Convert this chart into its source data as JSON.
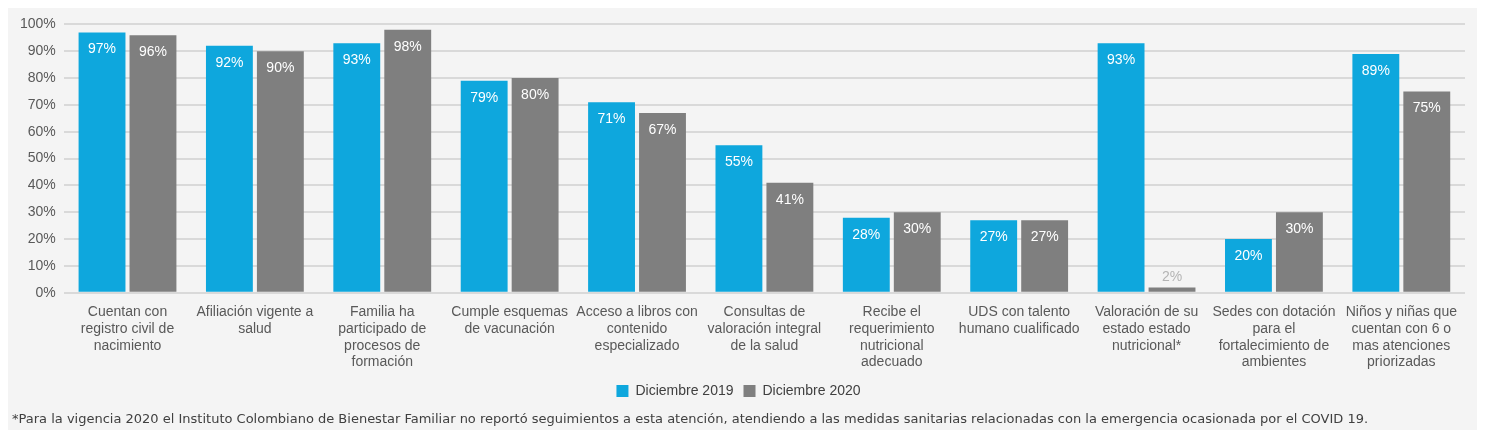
{
  "chart_data": {
    "type": "bar",
    "categories": [
      "Cuentan con registro civil de nacimiento",
      "Afiliación vigente a salud",
      "Familia ha participado de procesos de formación",
      "Cumple esquemas de vacunación",
      "Acceso a libros con contenido especializado",
      "Consultas de valoración integral de la salud",
      "Recibe el requerimiento nutricional adecuado",
      "UDS con talento humano cualificado",
      "Valoración de su estado estado nutricional*",
      "Sedes con dotación para el fortalecimiento de ambientes",
      "Niños y niñas que cuentan con 6 o mas atenciones priorizadas"
    ],
    "series": [
      {
        "name": "Diciembre 2019",
        "color": "#0ea7dd",
        "values": [
          97,
          92,
          93,
          79,
          71,
          55,
          28,
          27,
          93,
          20,
          89
        ],
        "value_labels": [
          "97%",
          "92%",
          "93%",
          "79%",
          "71%",
          "55%",
          "28%",
          "27%",
          "93%",
          "20%",
          "89%"
        ]
      },
      {
        "name": "Diciembre 2020",
        "color": "#7f7f7f",
        "values": [
          96,
          90,
          98,
          80,
          67,
          41,
          30,
          27,
          2,
          30,
          75
        ],
        "value_labels": [
          "96%",
          "90%",
          "98%",
          "80%",
          "67%",
          "41%",
          "30%",
          "27%",
          "2%",
          "30%",
          "75%"
        ]
      }
    ],
    "ylim": [
      0,
      100
    ],
    "yticks": [
      {
        "value": 0,
        "label": "0%"
      },
      {
        "value": 10,
        "label": "10%"
      },
      {
        "value": 20,
        "label": "20%"
      },
      {
        "value": 30,
        "label": "30%"
      },
      {
        "value": 40,
        "label": "40%"
      },
      {
        "value": 50,
        "label": "50%"
      },
      {
        "value": 60,
        "label": "60%"
      },
      {
        "value": 70,
        "label": "70%"
      },
      {
        "value": 80,
        "label": "80%"
      },
      {
        "value": 90,
        "label": "90%"
      },
      {
        "value": 100,
        "label": "100%"
      }
    ],
    "grid": "y",
    "legend": "bottom",
    "annotations": [
      "*Para la vigencia 2020 el Instituto Colombiano de Bienestar Familiar no reportó seguimientos a esta atención, atendiendo a las medidas sanitarias relacionadas con la emergencia ocasionada por el COVID 19."
    ]
  }
}
